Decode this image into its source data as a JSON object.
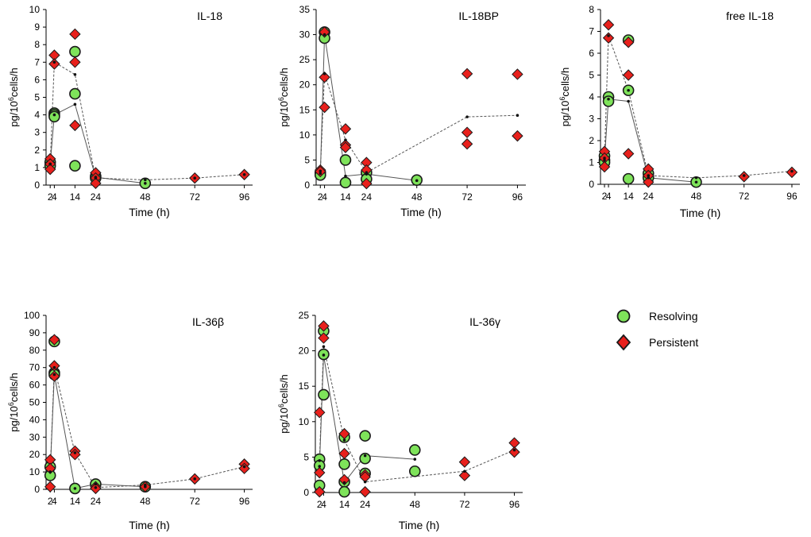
{
  "legend": {
    "items": [
      {
        "label": "Resolving",
        "marker": "circle",
        "fill": "#7ee35a",
        "stroke": "#1a1a1a"
      },
      {
        "label": "Persistent",
        "marker": "diamond",
        "fill": "#e8201c",
        "stroke": "#1a1a1a"
      }
    ]
  },
  "colors": {
    "resolving": "#7ee35a",
    "persistent": "#e8201c",
    "mean_dot": "#111111",
    "line": "#555555",
    "axis": "#000000"
  },
  "chart_data": [
    {
      "type": "scatter",
      "title": "IL-18",
      "xlabel": "Time (h)",
      "ylabel": "pg/10^6cells/h",
      "xlim": [
        0,
        100
      ],
      "ylim": [
        0,
        10
      ],
      "xticks": [
        2,
        4,
        14,
        24,
        48,
        72,
        96
      ],
      "yticks": [
        0,
        1,
        2,
        3,
        4,
        5,
        6,
        7,
        8,
        9,
        10
      ],
      "series": [
        {
          "name": "Resolving",
          "marker": "circle",
          "points": [
            [
              2,
              1.3
            ],
            [
              2,
              1.1
            ],
            [
              4,
              4.1
            ],
            [
              4,
              4.0
            ],
            [
              4,
              3.9
            ],
            [
              14,
              7.6
            ],
            [
              14,
              5.2
            ],
            [
              14,
              1.1
            ],
            [
              24,
              0.5
            ],
            [
              24,
              0.4
            ],
            [
              48,
              0.1
            ]
          ],
          "mean": [
            [
              2,
              1.2
            ],
            [
              4,
              4.0
            ],
            [
              14,
              4.6
            ],
            [
              24,
              0.45
            ],
            [
              48,
              0.1
            ]
          ]
        },
        {
          "name": "Persistent",
          "marker": "diamond",
          "points": [
            [
              2,
              1.5
            ],
            [
              2,
              1.2
            ],
            [
              2,
              0.9
            ],
            [
              4,
              7.4
            ],
            [
              4,
              6.9
            ],
            [
              14,
              8.6
            ],
            [
              14,
              7.0
            ],
            [
              14,
              3.4
            ],
            [
              24,
              0.7
            ],
            [
              24,
              0.4
            ],
            [
              24,
              0.1
            ],
            [
              72,
              0.4
            ],
            [
              96,
              0.6
            ]
          ],
          "mean": [
            [
              2,
              1.2
            ],
            [
              4,
              7.0
            ],
            [
              14,
              6.3
            ],
            [
              24,
              0.4
            ],
            [
              48,
              0.3
            ],
            [
              72,
              0.4
            ],
            [
              96,
              0.6
            ]
          ]
        }
      ]
    },
    {
      "type": "scatter",
      "title": "IL-18BP",
      "xlabel": "Time (h)",
      "ylabel": "pg/10^6cells/h",
      "xlim": [
        0,
        100
      ],
      "ylim": [
        0,
        35
      ],
      "xticks": [
        2,
        4,
        14,
        24,
        48,
        72,
        96
      ],
      "yticks": [
        0,
        5,
        10,
        15,
        20,
        25,
        30,
        35
      ],
      "series": [
        {
          "name": "Resolving",
          "marker": "circle",
          "points": [
            [
              2,
              2.5
            ],
            [
              2,
              2.0
            ],
            [
              4,
              30.5
            ],
            [
              4,
              29.3
            ],
            [
              14,
              5.0
            ],
            [
              14,
              0.5
            ],
            [
              24,
              2.5
            ],
            [
              24,
              1.2
            ],
            [
              48,
              1.0
            ]
          ],
          "mean": [
            [
              2,
              2.3
            ],
            [
              4,
              30.0
            ],
            [
              14,
              1.8
            ],
            [
              24,
              2.2
            ],
            [
              48,
              0.9
            ]
          ]
        },
        {
          "name": "Persistent",
          "marker": "diamond",
          "points": [
            [
              2,
              3.0
            ],
            [
              2,
              2.7
            ],
            [
              4,
              30.5
            ],
            [
              4,
              21.5
            ],
            [
              4,
              15.5
            ],
            [
              14,
              11.2
            ],
            [
              14,
              8.0
            ],
            [
              14,
              7.5
            ],
            [
              24,
              4.5
            ],
            [
              24,
              3.0
            ],
            [
              24,
              0.3
            ],
            [
              72,
              22.2
            ],
            [
              72,
              10.5
            ],
            [
              72,
              8.2
            ],
            [
              96,
              22.1
            ],
            [
              96,
              9.8
            ]
          ],
          "mean": [
            [
              2,
              2.8
            ],
            [
              4,
              22.2
            ],
            [
              14,
              9.0
            ],
            [
              24,
              2.5
            ],
            [
              72,
              13.6
            ],
            [
              96,
              13.9
            ]
          ]
        }
      ]
    },
    {
      "type": "scatter",
      "title": "free IL-18",
      "xlabel": "Time (h)",
      "ylabel": "pg/10^6cells/h",
      "xlim": [
        0,
        100
      ],
      "ylim": [
        0,
        8
      ],
      "xticks": [
        2,
        4,
        14,
        24,
        48,
        72,
        96
      ],
      "yticks": [
        0,
        1,
        2,
        3,
        4,
        5,
        6,
        7,
        8
      ],
      "series": [
        {
          "name": "Resolving",
          "marker": "circle",
          "points": [
            [
              2,
              1.3
            ],
            [
              2,
              1.1
            ],
            [
              2,
              1.0
            ],
            [
              4,
              4.0
            ],
            [
              4,
              3.8
            ],
            [
              14,
              6.6
            ],
            [
              14,
              4.3
            ],
            [
              14,
              0.25
            ],
            [
              24,
              0.5
            ],
            [
              24,
              0.3
            ],
            [
              48,
              0.1
            ]
          ],
          "mean": [
            [
              2,
              1.1
            ],
            [
              4,
              3.9
            ],
            [
              14,
              3.8
            ],
            [
              24,
              0.3
            ],
            [
              48,
              0.1
            ]
          ]
        },
        {
          "name": "Persistent",
          "marker": "diamond",
          "points": [
            [
              2,
              1.5
            ],
            [
              2,
              1.2
            ],
            [
              2,
              0.8
            ],
            [
              4,
              7.3
            ],
            [
              4,
              6.7
            ],
            [
              14,
              6.5
            ],
            [
              14,
              5.0
            ],
            [
              14,
              1.4
            ],
            [
              24,
              0.7
            ],
            [
              24,
              0.4
            ],
            [
              24,
              0.1
            ],
            [
              72,
              0.35
            ],
            [
              96,
              0.55
            ]
          ],
          "mean": [
            [
              2,
              1.2
            ],
            [
              4,
              6.8
            ],
            [
              14,
              4.3
            ],
            [
              24,
              0.4
            ],
            [
              48,
              0.3
            ],
            [
              72,
              0.4
            ],
            [
              96,
              0.6
            ]
          ]
        }
      ]
    },
    {
      "type": "scatter",
      "title": "IL-36β",
      "xlabel": "Time (h)",
      "ylabel": "pg/10^6cells/h",
      "xlim": [
        0,
        100
      ],
      "ylim": [
        0,
        100
      ],
      "xticks": [
        2,
        4,
        14,
        24,
        48,
        72,
        96
      ],
      "yticks": [
        0,
        10,
        20,
        30,
        40,
        50,
        60,
        70,
        80,
        90,
        100
      ],
      "series": [
        {
          "name": "Resolving",
          "marker": "circle",
          "points": [
            [
              2,
              13
            ],
            [
              2,
              8
            ],
            [
              4,
              85
            ],
            [
              4,
              67
            ],
            [
              4,
              66
            ],
            [
              14,
              0.5
            ],
            [
              24,
              3
            ],
            [
              48,
              1.5
            ]
          ],
          "mean": [
            [
              2,
              10
            ],
            [
              4,
              66
            ],
            [
              14,
              0.5
            ],
            [
              24,
              3
            ],
            [
              48,
              1.5
            ]
          ]
        },
        {
          "name": "Persistent",
          "marker": "diamond",
          "points": [
            [
              2,
              17
            ],
            [
              2,
              12
            ],
            [
              2,
              1.5
            ],
            [
              4,
              86
            ],
            [
              4,
              71
            ],
            [
              4,
              65
            ],
            [
              14,
              22
            ],
            [
              14,
              20
            ],
            [
              24,
              1.5
            ],
            [
              24,
              0.5
            ],
            [
              48,
              1.5
            ],
            [
              72,
              6
            ],
            [
              96,
              14.5
            ],
            [
              96,
              12
            ]
          ],
          "mean": [
            [
              2,
              10
            ],
            [
              4,
              70
            ],
            [
              14,
              21
            ],
            [
              24,
              1
            ],
            [
              48,
              2.5
            ],
            [
              72,
              6
            ],
            [
              96,
              13
            ]
          ]
        }
      ]
    },
    {
      "type": "scatter",
      "title": "IL-36γ",
      "xlabel": "Time (h)",
      "ylabel": "pg/10^6cells/h",
      "xlim": [
        0,
        100
      ],
      "ylim": [
        0,
        25
      ],
      "xticks": [
        2,
        4,
        14,
        24,
        48,
        72,
        96
      ],
      "yticks": [
        0,
        5,
        10,
        15,
        20,
        25
      ],
      "series": [
        {
          "name": "Resolving",
          "marker": "circle",
          "points": [
            [
              2,
              4.7
            ],
            [
              2,
              3.8
            ],
            [
              2,
              1.0
            ],
            [
              4,
              22.8
            ],
            [
              4,
              19.5
            ],
            [
              4,
              13.8
            ],
            [
              14,
              7.8
            ],
            [
              14,
              4.0
            ],
            [
              14,
              1.5
            ],
            [
              14,
              0.1
            ],
            [
              24,
              8.0
            ],
            [
              24,
              4.8
            ],
            [
              24,
              2.7
            ],
            [
              48,
              6.0
            ],
            [
              48,
              3.0
            ]
          ],
          "mean": [
            [
              2,
              3.7
            ],
            [
              4,
              19.4
            ],
            [
              14,
              1.4
            ],
            [
              24,
              5.2
            ],
            [
              48,
              4.7
            ]
          ]
        },
        {
          "name": "Persistent",
          "marker": "diamond",
          "points": [
            [
              2,
              11.3
            ],
            [
              2,
              2.8
            ],
            [
              2,
              0.1
            ],
            [
              4,
              23.5
            ],
            [
              4,
              21.8
            ],
            [
              14,
              8.3
            ],
            [
              14,
              5.5
            ],
            [
              14,
              1.8
            ],
            [
              24,
              2.5
            ],
            [
              24,
              2.2
            ],
            [
              24,
              0.1
            ],
            [
              72,
              4.3
            ],
            [
              72,
              2.4
            ],
            [
              96,
              7.0
            ],
            [
              96,
              5.7
            ]
          ],
          "mean": [
            [
              2,
              4.5
            ],
            [
              4,
              20.6
            ],
            [
              14,
              7.4
            ],
            [
              24,
              1.5
            ],
            [
              72,
              3.0
            ],
            [
              96,
              6.0
            ]
          ]
        }
      ]
    }
  ]
}
